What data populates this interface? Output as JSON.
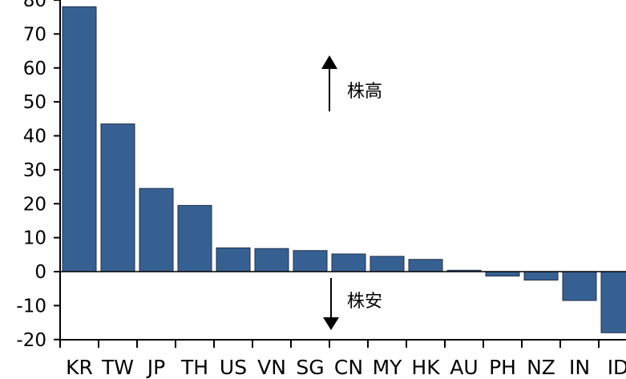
{
  "chart_data": {
    "type": "bar",
    "categories": [
      "KR",
      "TW",
      "JP",
      "TH",
      "US",
      "VN",
      "SG",
      "CN",
      "MY",
      "HK",
      "AU",
      "PH",
      "NZ",
      "IN",
      "ID"
    ],
    "values": [
      78,
      43.5,
      24.5,
      19.5,
      7,
      6.8,
      6.2,
      5.2,
      4.5,
      3.6,
      0.4,
      -1.3,
      -2.5,
      -8.5,
      -18
    ],
    "ylim": [
      -20,
      80
    ],
    "yticks": [
      "-20",
      "-10",
      "0",
      "10",
      "20",
      "30",
      "40",
      "50",
      "60",
      "70",
      "80"
    ],
    "bar_color": "#376092",
    "grid": false,
    "annotations": {
      "up_label": "株高",
      "down_label": "株安"
    }
  }
}
